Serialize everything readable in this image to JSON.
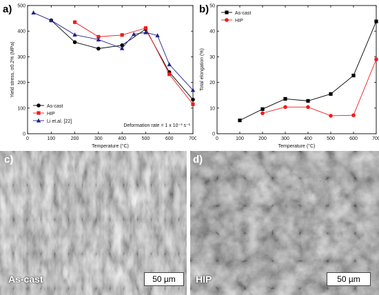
{
  "panels": {
    "a": "a)",
    "b": "b)",
    "c": "c)",
    "d": "d)"
  },
  "chart_data": [
    {
      "type": "line",
      "panel": "a)",
      "xlabel": "Temperature (°C)",
      "ylabel": "Yield stress, σ0.2% (MPa)",
      "xlim": [
        0,
        700
      ],
      "ylim": [
        0,
        500
      ],
      "xticks": [
        0,
        100,
        200,
        300,
        400,
        500,
        600,
        700
      ],
      "yticks": [
        0,
        100,
        200,
        300,
        400,
        500
      ],
      "annotation": "Deformation rate = 1 x 10⁻³ s⁻¹",
      "legend_position": "bottom-left",
      "series": [
        {
          "name": "As-cast",
          "color": "#000000",
          "marker": "circle",
          "x": [
            100,
            200,
            300,
            400,
            500,
            600,
            700
          ],
          "y": [
            442,
            357,
            332,
            345,
            408,
            240,
            133
          ]
        },
        {
          "name": "HIP",
          "color": "#ee1c1c",
          "marker": "square",
          "x": [
            200,
            300,
            400,
            500,
            600,
            700
          ],
          "y": [
            435,
            378,
            385,
            412,
            232,
            115
          ]
        },
        {
          "name": "Li et.al. [22]",
          "color": "#22228b",
          "marker": "triangle",
          "x": [
            25,
            100,
            200,
            300,
            400,
            450,
            500,
            550,
            600,
            700
          ],
          "y": [
            472,
            442,
            386,
            367,
            333,
            388,
            395,
            383,
            270,
            170
          ]
        }
      ]
    },
    {
      "type": "line",
      "panel": "b)",
      "xlabel": "Temperature (°C)",
      "ylabel": "Total elongation (%)",
      "xlim": [
        0,
        700
      ],
      "ylim": [
        0,
        50
      ],
      "xticks": [
        0,
        100,
        200,
        300,
        400,
        500,
        600,
        700
      ],
      "yticks": [
        0,
        10,
        20,
        30,
        40,
        50
      ],
      "legend_position": "top-left",
      "series": [
        {
          "name": "As-cast",
          "color": "#000000",
          "marker": "square",
          "x": [
            100,
            200,
            300,
            400,
            500,
            600,
            700
          ],
          "y": [
            5.2,
            9.6,
            13.6,
            12.8,
            15.5,
            22.7,
            43.8
          ]
        },
        {
          "name": "HIP",
          "color": "#ee1c1c",
          "marker": "circle",
          "x": [
            200,
            300,
            400,
            500,
            600,
            700
          ],
          "y": [
            8.0,
            10.4,
            10.4,
            7.0,
            7.2,
            29.0
          ]
        }
      ]
    }
  ],
  "images": {
    "c": {
      "label": "As-cast",
      "scale": "50 µm"
    },
    "d": {
      "label": "HIP",
      "scale": "50 µm"
    }
  }
}
